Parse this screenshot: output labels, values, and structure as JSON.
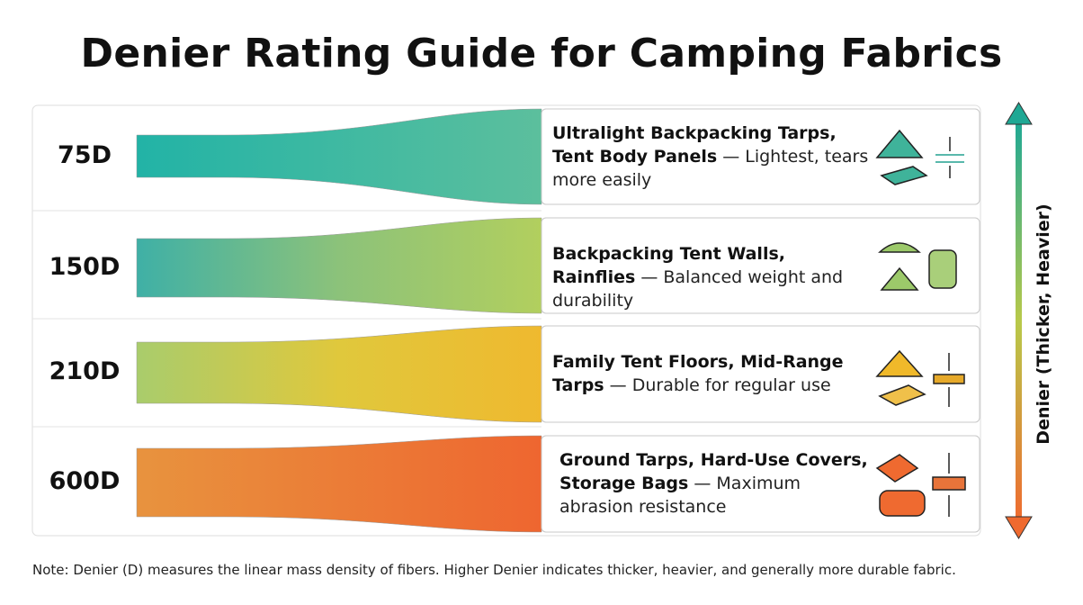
{
  "title": "Denier Rating Guide for Camping Fabrics",
  "rows": [
    {
      "rating": "75D",
      "use": "Ultralight Backpacking Tarps, Tent Body Panels",
      "detail": "— Lightest, tears more easily"
    },
    {
      "rating": "150D",
      "use": "Backpacking Tent Walls, Rainflies",
      "detail": "— Balanced weight and durability"
    },
    {
      "rating": "210D",
      "use": "Family Tent Floors, Mid-Range Tarps",
      "detail": "— Durable for regular use"
    },
    {
      "rating": "600D",
      "use": "Ground Tarps, Hard-Use Covers, Storage Bags",
      "detail": "— Maximum abrasion resistance"
    }
  ],
  "axis_label": "Denier (Thicker, Heavier)",
  "note": "Note: Denier (D) measures the linear mass density of fibers. Higher Denier indicates thicker, heavier, and generally more durable fabric."
}
